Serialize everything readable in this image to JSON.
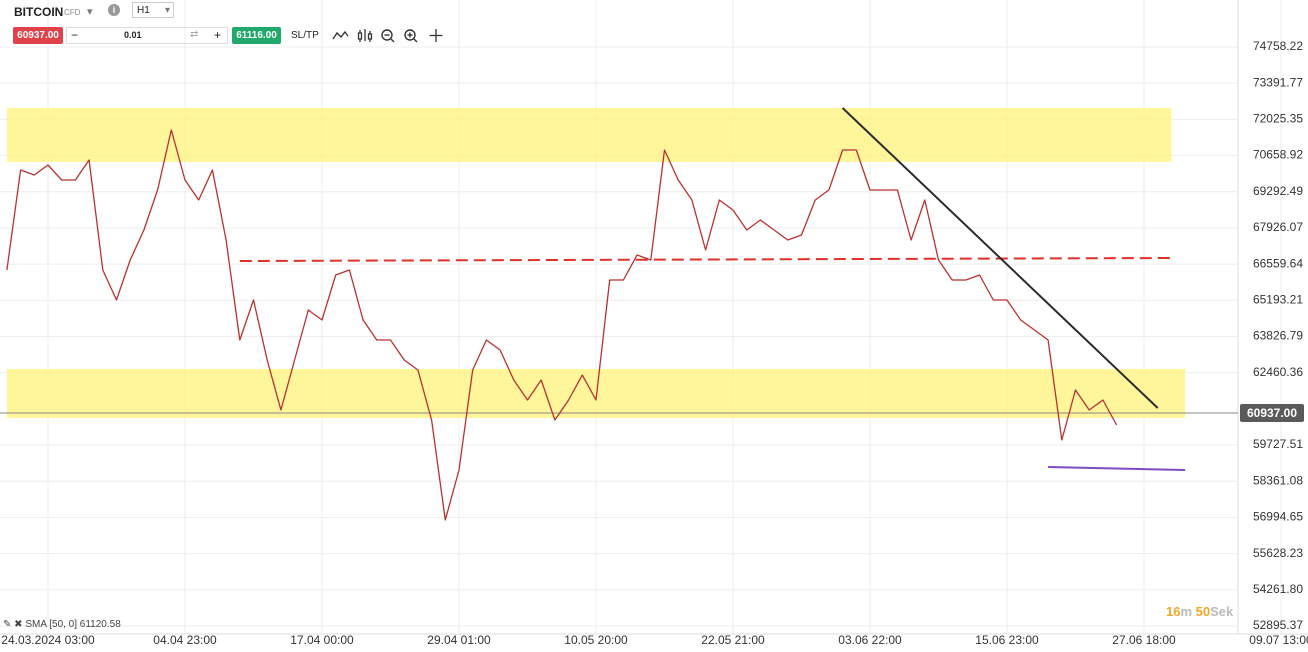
{
  "toolbar": {
    "symbol": "BITCOIN",
    "symbol_kind": "CFD",
    "timeframe": "H1",
    "minus": "−",
    "volume": "0.01",
    "plus": "+",
    "buy_price": "61116.00",
    "sltp": "SL/TP"
  },
  "indicator": "SMA [50, 0] 61120.58",
  "countdown": {
    "minutes": "16",
    "minutes_unit": "m",
    "seconds": "50",
    "seconds_unit": "Sek"
  },
  "chart_data": {
    "type": "line",
    "categories": [
      null,
      null,
      null,
      "24.03.2024 03:00",
      null,
      null,
      null,
      null,
      null,
      null,
      null,
      null,
      null,
      "04.04 23:00",
      null,
      null,
      null,
      null,
      null,
      null,
      null,
      null,
      null,
      "17.04 00:00",
      null,
      null,
      null,
      null,
      null,
      null,
      null,
      null,
      null,
      "29.04 01:00",
      null,
      null,
      null,
      null,
      null,
      null,
      null,
      null,
      null,
      "10.05 20:00",
      null,
      null,
      null,
      null,
      null,
      null,
      null,
      null,
      null,
      "22.05 21:00",
      null,
      null,
      null,
      null,
      null,
      null,
      null,
      null,
      null,
      "03.06 22:00",
      null,
      null,
      null,
      null,
      null,
      null,
      null,
      null,
      null,
      "15.06 23:00",
      null,
      null,
      null,
      null,
      null,
      null,
      null,
      null,
      null,
      "27.06 18:00",
      null,
      null,
      null,
      null,
      null,
      null,
      null,
      null,
      null,
      "09.07 13:00"
    ],
    "series": [
      {
        "name": "BITCOIN",
        "color": "#b8322f",
        "values": [
          66337,
          70113,
          69924,
          70302,
          69735,
          69735,
          70490,
          66337,
          65204,
          66714,
          67847,
          69358,
          71623,
          69735,
          68980,
          70113,
          67470,
          63694,
          65204,
          62938,
          61050,
          62938,
          64826,
          64449,
          66148,
          66337,
          64449,
          63694,
          63694,
          62938,
          62561,
          60673,
          56897,
          58785,
          62561,
          63694,
          63316,
          62183,
          61428,
          62183,
          60673,
          61428,
          62372,
          61428,
          65959,
          65959,
          66903,
          66714,
          70868,
          69735,
          68980,
          67092,
          68980,
          68602,
          67847,
          68225,
          67847,
          67470,
          67658,
          68980,
          69358,
          70868,
          70868,
          69358,
          69358,
          69358,
          67470,
          68980,
          66714,
          65959,
          65959,
          66148,
          65204,
          65204,
          64449,
          64071,
          63694,
          59918,
          61806,
          61050,
          61428,
          60484,
          null,
          null,
          null,
          null,
          null,
          null,
          null,
          null,
          null,
          null,
          null,
          null
        ]
      }
    ],
    "ylim": [
      52593,
      76532
    ],
    "yticks": [
      74758.22,
      73391.77,
      72025.35,
      70658.92,
      69292.49,
      67926.07,
      66559.64,
      65193.21,
      63826.79,
      62460.36,
      59727.51,
      58361.08,
      56994.65,
      55628.23,
      {
        "value": 54261.8,
        "label": "54261.80"
      },
      52895.37
    ],
    "grid": true,
    "current_price": {
      "value": 60937,
      "label": "60937.00"
    },
    "zones": [
      {
        "x": [
          0,
          85
        ],
        "y": [
          70415,
          72454
        ],
        "color": "#fff27a"
      },
      {
        "x": [
          0,
          86
        ],
        "y": [
          60748,
          62599
        ],
        "color": "#fff27a"
      }
    ],
    "lines": [
      {
        "x": [
          17,
          85
        ],
        "y": [
          66677,
          66790
        ],
        "color": "#e0302a",
        "style": "dashed"
      },
      {
        "x": [
          61,
          84
        ],
        "y": [
          72454,
          61126
        ],
        "color": "#2b2b2b",
        "style": "solid"
      },
      {
        "x": [
          76,
          86
        ],
        "y": [
          58898,
          58785
        ],
        "color": "#7e4bc4",
        "style": "solid"
      }
    ]
  }
}
